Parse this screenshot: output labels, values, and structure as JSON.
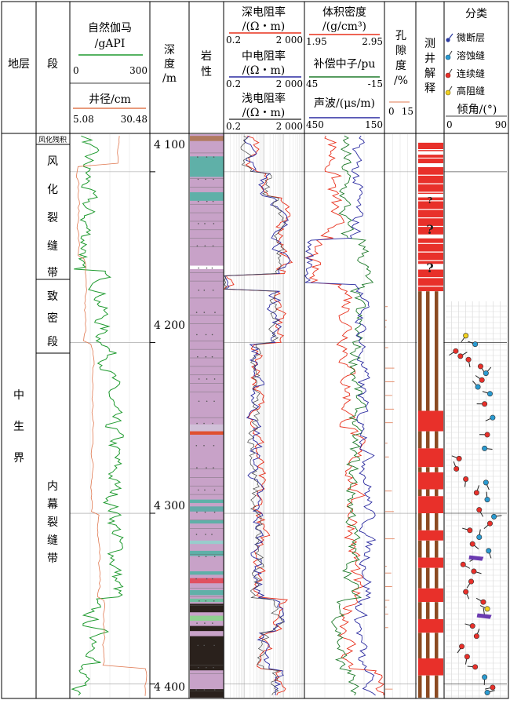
{
  "header": {
    "stratum": "地层",
    "segment": "段",
    "gr": {
      "title": "自然伽马",
      "unit": "/gAPI",
      "min": "0",
      "max": "300"
    },
    "cal": {
      "title": "井径/cm",
      "min": "5.08",
      "max": "30.48"
    },
    "depth": {
      "line1": "深",
      "line2": "度",
      "line3": "/m"
    },
    "lith": {
      "line1": "岩",
      "line2": "性"
    },
    "rd": {
      "title": "深电阻率",
      "unit": "/(Ω・m)",
      "min": "0.2",
      "max": "2 000"
    },
    "rm": {
      "title": "中电阻率",
      "unit": "/(Ω・m)",
      "min": "0.2",
      "max": "2 000"
    },
    "rs": {
      "title": "浅电阻率",
      "unit": "/(Ω・m)",
      "min": "0.2",
      "max": "2 000"
    },
    "den": {
      "title": "体积密度",
      "unit": "/(g/cm³)",
      "min": "1.95",
      "max": "2.95"
    },
    "cnl": {
      "title": "补偿中子/pu",
      "min": "45",
      "max": "-15"
    },
    "ac": {
      "title": "声波/(μs/m)",
      "min": "450",
      "max": "150"
    },
    "por": {
      "line1": "孔",
      "line2": "隙",
      "line3": "度",
      "line4": "/%",
      "min": "0",
      "max": "15"
    },
    "interp": {
      "line1": "测",
      "line2": "井",
      "line3": "解",
      "line4": "释"
    },
    "cls": {
      "title": "分类",
      "items": [
        "微断层",
        "溶蚀缝",
        "连续缝",
        "高阻缝"
      ],
      "dip": "倾角/(°)",
      "min": "0",
      "max": "90"
    }
  },
  "stratum_label": [
    "中",
    "生",
    "界"
  ],
  "segments": [
    {
      "label": "风化残积",
      "chars": []
    },
    {
      "label": "",
      "chars": [
        "风",
        "化",
        "裂",
        "缝",
        "带"
      ]
    },
    {
      "label": "",
      "chars": [
        "致",
        "密",
        "段"
      ]
    },
    {
      "label": "",
      "chars": [
        "内",
        "幕",
        "裂",
        "缝",
        "带"
      ]
    }
  ],
  "depth_ticks": [
    "4 100",
    "4 200",
    "4 300",
    "4 400"
  ],
  "interp_marks": [
    "?",
    "?",
    "?"
  ],
  "colors": {
    "gr": "#1e9a2e",
    "cal": "#e07850",
    "rd": "#e8301c",
    "rm": "#2a2aa0",
    "rs": "#444444",
    "den": "#e8301c",
    "cnl": "#1e7a2a",
    "ac": "#2a2aa0",
    "lith_main": "#c8a2c8",
    "lith_teal": "#5fb0a8",
    "lith_dark": "#2a211c",
    "interp_red": "#e8302a",
    "interp_brown": "#8b4a22"
  },
  "chart_data": {
    "type": "line",
    "x_axis": "depth",
    "ylim": [
      4078,
      4408
    ],
    "dip_range": [
      0,
      90
    ],
    "fractures": [
      {
        "depth": 4196,
        "dip": 30,
        "type": "高阻缝"
      },
      {
        "depth": 4201,
        "dip": 44,
        "type": "溶蚀缝"
      },
      {
        "depth": 4205,
        "dip": 15,
        "type": "连续缝"
      },
      {
        "depth": 4208,
        "dip": 22,
        "type": "连续缝"
      },
      {
        "depth": 4210,
        "dip": 34,
        "type": "连续缝"
      },
      {
        "depth": 4214,
        "dip": 52,
        "type": "连续缝"
      },
      {
        "depth": 4218,
        "dip": 60,
        "type": "溶蚀缝"
      },
      {
        "depth": 4222,
        "dip": 54,
        "type": "连续缝"
      },
      {
        "depth": 4226,
        "dip": 48,
        "type": "溶蚀缝"
      },
      {
        "depth": 4230,
        "dip": 66,
        "type": "溶蚀缝"
      },
      {
        "depth": 4236,
        "dip": 58,
        "type": "连续缝"
      },
      {
        "depth": 4244,
        "dip": 70,
        "type": "溶蚀缝"
      },
      {
        "depth": 4254,
        "dip": 62,
        "type": "连续缝"
      },
      {
        "depth": 4262,
        "dip": 58,
        "type": "溶蚀缝"
      },
      {
        "depth": 4268,
        "dip": 20,
        "type": "连续缝"
      },
      {
        "depth": 4274,
        "dip": 16,
        "type": "连续缝"
      },
      {
        "depth": 4280,
        "dip": 30,
        "type": "连续缝"
      },
      {
        "depth": 4282,
        "dip": 60,
        "type": "溶蚀缝"
      },
      {
        "depth": 4288,
        "dip": 46,
        "type": "连续缝"
      },
      {
        "depth": 4292,
        "dip": 62,
        "type": "溶蚀缝"
      },
      {
        "depth": 4298,
        "dip": 50,
        "type": "连续缝"
      },
      {
        "depth": 4302,
        "dip": 72,
        "type": "溶蚀缝"
      },
      {
        "depth": 4306,
        "dip": 66,
        "type": "连续缝"
      },
      {
        "depth": 4310,
        "dip": 36,
        "type": "连续缝"
      },
      {
        "depth": 4314,
        "dip": 50,
        "type": "溶蚀缝"
      },
      {
        "depth": 4318,
        "dip": 40,
        "type": "连续缝"
      },
      {
        "depth": 4322,
        "dip": 64,
        "type": "溶蚀缝"
      },
      {
        "depth": 4326,
        "dip": 46,
        "type": "微断层"
      },
      {
        "depth": 4330,
        "dip": 26,
        "type": "连续缝"
      },
      {
        "depth": 4334,
        "dip": 42,
        "type": "连续缝"
      },
      {
        "depth": 4340,
        "dip": 38,
        "type": "连续缝"
      },
      {
        "depth": 4346,
        "dip": 30,
        "type": "连续缝"
      },
      {
        "depth": 4352,
        "dip": 56,
        "type": "连续缝"
      },
      {
        "depth": 4356,
        "dip": 62,
        "type": "高阻缝"
      },
      {
        "depth": 4360,
        "dip": 58,
        "type": "微断层"
      },
      {
        "depth": 4366,
        "dip": 40,
        "type": "连续缝"
      },
      {
        "depth": 4372,
        "dip": 46,
        "type": "连续缝"
      },
      {
        "depth": 4378,
        "dip": 24,
        "type": "连续缝"
      },
      {
        "depth": 4384,
        "dip": 32,
        "type": "连续缝"
      },
      {
        "depth": 4390,
        "dip": 44,
        "type": "连续缝"
      },
      {
        "depth": 4396,
        "dip": 58,
        "type": "溶蚀缝"
      },
      {
        "depth": 4402,
        "dip": 70,
        "type": "连续缝"
      },
      {
        "depth": 4405,
        "dip": 62,
        "type": "溶蚀缝"
      }
    ]
  }
}
